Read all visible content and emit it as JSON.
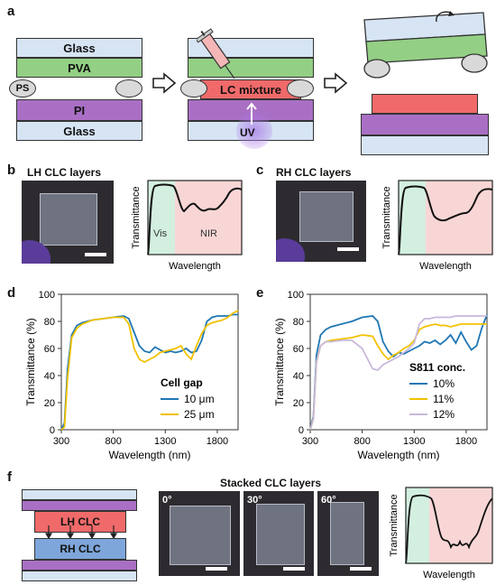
{
  "panels": {
    "a": "a",
    "b": "b",
    "c": "c",
    "d": "d",
    "e": "e",
    "f": "f"
  },
  "a": {
    "layer_glass": "Glass",
    "layer_pva": "PVA",
    "layer_pi": "PI",
    "spacer": "PS",
    "lc_mixture": "LC mixture",
    "uv": "UV"
  },
  "b": {
    "title": "LH CLC layers",
    "vis": "Vis",
    "nir": "NIR",
    "ylabel": "Transmittance",
    "xlabel": "Wavelength"
  },
  "c": {
    "title": "RH CLC layers",
    "ylabel": "Transmittance",
    "xlabel": "Wavelength"
  },
  "f": {
    "title": "Stacked CLC layers",
    "lh": "LH CLC",
    "rh": "RH CLC",
    "angles": [
      "0°",
      "30°",
      "60°"
    ],
    "ylabel": "Transmittance",
    "xlabel": "Wavelength"
  },
  "colors": {
    "vis_band": "#d3efe0",
    "nir_band": "#f9d6d6",
    "blue": "#1f77b4",
    "gold": "#f2c200",
    "lilac": "#c8b8dc"
  },
  "chart_data": [
    {
      "type": "line",
      "xlabel": "Wavelength (nm)",
      "ylabel": "Transmittance (%)",
      "xlim": [
        300,
        2000
      ],
      "ylim": [
        0,
        100
      ],
      "xticks": [
        300,
        800,
        1300,
        1800
      ],
      "yticks": [
        0,
        20,
        40,
        60,
        80,
        100
      ],
      "legend_title": "Cell gap",
      "legend_placement": "bottom-right",
      "series": [
        {
          "name": "10 μm",
          "color": "#1f77b4",
          "x": [
            300,
            330,
            360,
            400,
            450,
            500,
            600,
            700,
            800,
            900,
            950,
            1000,
            1050,
            1100,
            1150,
            1200,
            1250,
            1300,
            1350,
            1400,
            1450,
            1500,
            1550,
            1600,
            1650,
            1700,
            1750,
            1800,
            1850,
            1900,
            1950,
            2000
          ],
          "y": [
            0,
            5,
            45,
            70,
            77,
            79,
            81,
            82,
            83,
            84,
            82,
            72,
            62,
            58,
            57,
            61,
            59,
            57,
            58,
            57,
            58,
            60,
            57,
            58,
            66,
            80,
            83,
            84,
            84,
            84,
            85,
            85
          ]
        },
        {
          "name": "25 μm",
          "color": "#f2c200",
          "x": [
            300,
            330,
            360,
            400,
            450,
            500,
            600,
            700,
            800,
            900,
            950,
            1000,
            1050,
            1100,
            1150,
            1200,
            1250,
            1300,
            1350,
            1400,
            1450,
            1500,
            1550,
            1600,
            1650,
            1700,
            1750,
            1800,
            1850,
            1900,
            1950,
            2000
          ],
          "y": [
            0,
            2,
            38,
            68,
            75,
            78,
            81,
            82,
            83,
            83,
            78,
            60,
            52,
            50,
            52,
            54,
            57,
            58,
            59,
            60,
            62,
            56,
            52,
            62,
            71,
            77,
            79,
            80,
            81,
            83,
            86,
            88
          ]
        }
      ]
    },
    {
      "type": "line",
      "xlabel": "Wavelength (nm)",
      "ylabel": "Transmittance (%)",
      "xlim": [
        300,
        2000
      ],
      "ylim": [
        0,
        100
      ],
      "xticks": [
        300,
        800,
        1300,
        1800
      ],
      "yticks": [
        0,
        20,
        40,
        60,
        80,
        100
      ],
      "legend_title": "S811 conc.",
      "legend_placement": "bottom-right",
      "series": [
        {
          "name": "10%",
          "color": "#1f77b4",
          "x": [
            300,
            330,
            360,
            400,
            450,
            500,
            600,
            700,
            800,
            900,
            950,
            1000,
            1050,
            1100,
            1150,
            1200,
            1250,
            1300,
            1350,
            1400,
            1450,
            1500,
            1550,
            1600,
            1650,
            1700,
            1750,
            1800,
            1850,
            1900,
            1950,
            2000
          ],
          "y": [
            0,
            10,
            55,
            70,
            74,
            76,
            78,
            80,
            83,
            84,
            80,
            65,
            58,
            54,
            57,
            56,
            58,
            60,
            62,
            65,
            64,
            66,
            63,
            66,
            70,
            64,
            72,
            65,
            59,
            62,
            75,
            85
          ]
        },
        {
          "name": "11%",
          "color": "#f2c200",
          "x": [
            300,
            330,
            360,
            400,
            450,
            500,
            600,
            700,
            800,
            900,
            950,
            1000,
            1050,
            1100,
            1150,
            1200,
            1250,
            1300,
            1350,
            1400,
            1450,
            1500,
            1550,
            1600,
            1650,
            1700,
            1750,
            1800,
            1850,
            1900,
            1950,
            2000
          ],
          "y": [
            0,
            8,
            50,
            62,
            65,
            66,
            67,
            68,
            70,
            69,
            62,
            56,
            52,
            55,
            57,
            60,
            62,
            66,
            74,
            76,
            77,
            78,
            77,
            77,
            76,
            77,
            78,
            78,
            78,
            78,
            78,
            78
          ]
        },
        {
          "name": "12%",
          "color": "#c8b8dc",
          "x": [
            300,
            330,
            360,
            400,
            450,
            500,
            600,
            700,
            800,
            900,
            950,
            1000,
            1050,
            1100,
            1150,
            1200,
            1250,
            1300,
            1350,
            1400,
            1450,
            1500,
            1550,
            1600,
            1650,
            1700,
            1750,
            1800,
            1850,
            1900,
            1950,
            2000
          ],
          "y": [
            0,
            8,
            50,
            62,
            65,
            65,
            66,
            66,
            60,
            45,
            44,
            48,
            50,
            52,
            54,
            57,
            60,
            64,
            78,
            82,
            82,
            83,
            83,
            83,
            83,
            84,
            84,
            84,
            84,
            84,
            84,
            84
          ]
        }
      ]
    }
  ]
}
